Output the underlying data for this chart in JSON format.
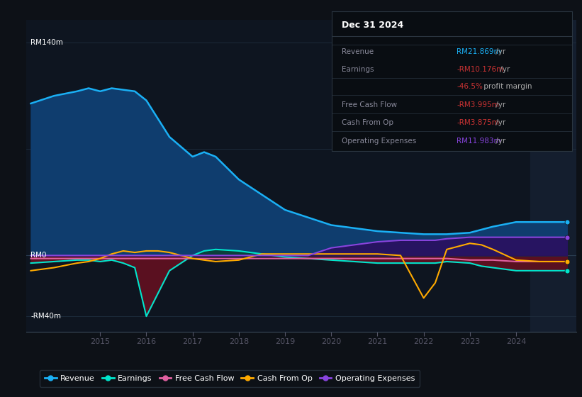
{
  "bg_color": "#0d1117",
  "plot_bg_color": "#0e1520",
  "grid_color": "#1e2d3d",
  "revenue_color": "#1ab0f5",
  "earnings_color": "#00e5cc",
  "fcf_color": "#e060a0",
  "cashfromop_color": "#ffaa00",
  "opex_color": "#8844dd",
  "revenue_fill_color": "#0f3d6e",
  "earnings_fill_neg_color": "#5a1020",
  "earnings_fill_pos_color": "#0a4030",
  "opex_fill_color": "#2a1060",
  "x_ticks": [
    2015,
    2016,
    2017,
    2018,
    2019,
    2020,
    2021,
    2022,
    2023,
    2024
  ],
  "ylim_min": -50,
  "ylim_max": 155,
  "xmin": 2013.4,
  "xmax": 2025.3,
  "forecast_start": 2024.3,
  "years": [
    2013.5,
    2014.0,
    2014.5,
    2014.75,
    2015.0,
    2015.25,
    2015.5,
    2015.75,
    2016.0,
    2016.25,
    2016.5,
    2017.0,
    2017.25,
    2017.5,
    2018.0,
    2018.25,
    2018.5,
    2019.0,
    2019.5,
    2020.0,
    2020.5,
    2021.0,
    2021.5,
    2022.0,
    2022.25,
    2022.5,
    2023.0,
    2023.25,
    2023.5,
    2024.0,
    2024.5,
    2025.1
  ],
  "revenue": [
    100,
    105,
    108,
    110,
    108,
    110,
    109,
    108,
    102,
    90,
    78,
    65,
    68,
    65,
    50,
    45,
    40,
    30,
    25,
    20,
    18,
    16,
    15,
    14,
    14,
    14,
    15,
    17,
    19,
    22,
    22,
    22
  ],
  "earnings": [
    -5,
    -4,
    -3,
    -3,
    -4,
    -3,
    -5,
    -8,
    -40,
    -25,
    -10,
    0,
    3,
    4,
    3,
    2,
    1,
    -1,
    -2,
    -3,
    -4,
    -5,
    -5,
    -5,
    -5,
    -4,
    -5,
    -7,
    -8,
    -10,
    -10,
    -10
  ],
  "fcf": [
    -2,
    -2,
    -2,
    -2,
    -2,
    -2,
    -2,
    -2,
    -2,
    -2,
    -2,
    -2,
    -2,
    -2,
    -2,
    -2,
    -2,
    -2,
    -2,
    -2,
    -2,
    -2,
    -2,
    -2,
    -2,
    -2,
    -3,
    -3,
    -3,
    -4,
    -4,
    -4
  ],
  "cashfromop": [
    -10,
    -8,
    -5,
    -4,
    -2,
    1,
    3,
    2,
    3,
    3,
    2,
    -2,
    -3,
    -4,
    -3,
    -1,
    1,
    1,
    1,
    1,
    1,
    1,
    0,
    -28,
    -18,
    4,
    8,
    7,
    4,
    -3,
    -4,
    -4
  ],
  "opex": [
    0,
    0,
    0,
    0,
    0,
    0,
    0,
    0,
    0,
    0,
    0,
    0,
    0,
    0,
    0,
    0,
    0,
    0,
    0,
    5,
    7,
    9,
    10,
    10,
    10,
    11,
    12,
    12,
    12,
    12,
    12,
    12
  ],
  "info_title": "Dec 31 2024",
  "info_rows": [
    {
      "label": "Revenue",
      "val": "RM21.869m",
      "suffix": " /yr",
      "val_color": "#1ab0f5"
    },
    {
      "label": "Earnings",
      "val": "-RM10.176m",
      "suffix": " /yr",
      "val_color": "#cc3333"
    },
    {
      "label": "",
      "val": "-46.5%",
      "suffix": " profit margin",
      "val_color": "#cc3333"
    },
    {
      "label": "Free Cash Flow",
      "val": "-RM3.995m",
      "suffix": " /yr",
      "val_color": "#cc3333"
    },
    {
      "label": "Cash From Op",
      "val": "-RM3.875m",
      "suffix": " /yr",
      "val_color": "#cc3333"
    },
    {
      "label": "Operating Expenses",
      "val": "RM11.983m",
      "suffix": " /yr",
      "val_color": "#8844dd"
    }
  ]
}
